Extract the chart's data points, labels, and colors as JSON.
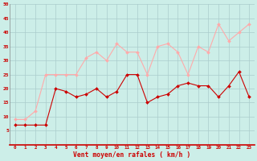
{
  "x": [
    0,
    1,
    2,
    3,
    4,
    5,
    6,
    7,
    8,
    9,
    10,
    11,
    12,
    13,
    14,
    15,
    16,
    17,
    18,
    19,
    20,
    21,
    22,
    23
  ],
  "wind_avg": [
    7,
    7,
    7,
    7,
    20,
    19,
    17,
    18,
    20,
    17,
    19,
    25,
    25,
    15,
    17,
    18,
    21,
    22,
    21,
    21,
    17,
    21,
    26,
    17
  ],
  "wind_gust": [
    9,
    9,
    12,
    25,
    25,
    25,
    25,
    31,
    33,
    30,
    36,
    33,
    33,
    25,
    35,
    36,
    33,
    25,
    35,
    33,
    43,
    37,
    40,
    43
  ],
  "avg_color": "#cc0000",
  "gust_color": "#ffaaaa",
  "bg_color": "#cceee8",
  "grid_color": "#aacccc",
  "xlabel": "Vent moyen/en rafales ( km/h )",
  "xlabel_color": "#cc0000",
  "tick_color": "#cc0000",
  "ylim": [
    0,
    50
  ],
  "yticks": [
    5,
    10,
    15,
    20,
    25,
    30,
    35,
    40,
    45,
    50
  ],
  "ytick_labels": [
    "5",
    "10",
    "15",
    "20",
    "25",
    "30",
    "35",
    "40",
    "45",
    "50"
  ],
  "markersize": 2.0,
  "linewidth": 0.8,
  "figwidth": 3.2,
  "figheight": 2.0,
  "dpi": 100
}
